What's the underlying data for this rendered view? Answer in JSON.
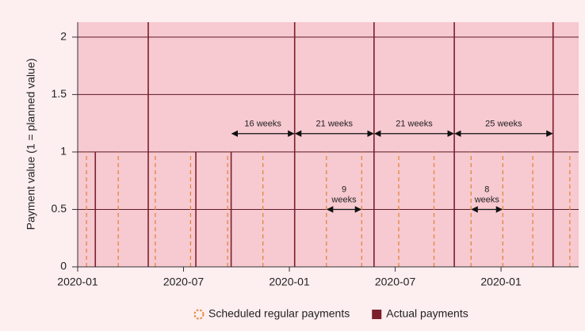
{
  "chart_data": {
    "type": "event_lines",
    "y_label": "Payment value (1 = planned value)",
    "xlim": [
      0,
      28.4
    ],
    "xticks": [
      {
        "value": 0,
        "label": "2020-01"
      },
      {
        "value": 6,
        "label": "2020-07"
      },
      {
        "value": 12,
        "label": "2020-01"
      },
      {
        "value": 18,
        "label": "2020-07"
      },
      {
        "value": 24,
        "label": "2020-01"
      }
    ],
    "ylim": [
      0,
      2.13
    ],
    "yticks": [
      0,
      0.5,
      1,
      1.5,
      2
    ],
    "grid": true,
    "legend": "bottom",
    "series": [
      {
        "name": "Scheduled regular payments",
        "color": "#e0883a",
        "dashed": true,
        "x": [
          0.5,
          2.3,
          4.4,
          6.4,
          8.5,
          10.5,
          14.1,
          16.1,
          18.2,
          20.2,
          22.3,
          24.1,
          25.8,
          27.9
        ],
        "values": [
          1,
          1,
          1,
          1,
          1,
          1,
          1,
          1,
          1,
          1,
          1,
          1,
          1,
          1
        ]
      },
      {
        "name": "Actual payments",
        "color": "#7a1f2b",
        "dashed": false,
        "x": [
          1.0,
          4.0,
          6.7,
          8.7,
          12.3,
          16.8,
          21.35,
          26.95
        ],
        "values": [
          1,
          2.13,
          1,
          1,
          2.13,
          2.13,
          2.13,
          2.13
        ]
      }
    ],
    "annotations": [
      {
        "text": "16 weeks",
        "x": [
          8.7,
          12.3
        ],
        "y": 1.16
      },
      {
        "text": "21 weeks",
        "x": [
          12.3,
          16.8
        ],
        "y": 1.16
      },
      {
        "text": "21 weeks",
        "x": [
          16.8,
          21.35
        ],
        "y": 1.16
      },
      {
        "text": "25 weeks",
        "x": [
          21.35,
          26.95
        ],
        "y": 1.16
      },
      {
        "text": "9 weeks",
        "x": [
          14.1,
          16.1
        ],
        "y": 0.5
      },
      {
        "text": "8 weeks",
        "x": [
          22.3,
          24.1
        ],
        "y": 0.5
      }
    ]
  }
}
